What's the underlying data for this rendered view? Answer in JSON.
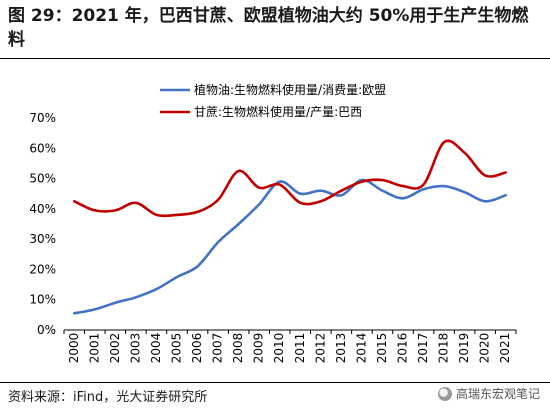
{
  "header": {
    "title": "图 29：2021 年，巴西甘蔗、欧盟植物油大约 50%用于生产生物燃料"
  },
  "footer": {
    "source": "资料来源：iFind，光大证券研究所",
    "watermark": "高瑞东宏观笔记"
  },
  "colors": {
    "eu": "#4472C4",
    "brazil": "#C00000"
  },
  "chart_data": {
    "type": "line",
    "title": "图 29：2021 年，巴西甘蔗、欧盟植物油大约 50%用于生产生物燃料",
    "xlabel": "",
    "ylabel": "",
    "ylim": [
      0,
      70
    ],
    "yticks": [
      "0%",
      "10%",
      "20%",
      "30%",
      "40%",
      "50%",
      "60%",
      "70%"
    ],
    "ytick_values": [
      0,
      10,
      20,
      30,
      40,
      50,
      60,
      70
    ],
    "x": [
      "2000",
      "2001",
      "2002",
      "2003",
      "2004",
      "2005",
      "2006",
      "2007",
      "2008",
      "2009",
      "2010",
      "2011",
      "2012",
      "2013",
      "2014",
      "2015",
      "2016",
      "2017",
      "2018",
      "2019",
      "2020",
      "2021"
    ],
    "grid": false,
    "legend": "top-center",
    "series": [
      {
        "name": "植物油:生物燃料使用量/消费量:欧盟",
        "color": "#4472C4",
        "values": [
          5.5,
          6.8,
          9.0,
          10.8,
          13.5,
          17.5,
          21.0,
          29.0,
          35.0,
          41.5,
          49.0,
          45.0,
          46.0,
          44.5,
          49.5,
          46.0,
          43.5,
          46.5,
          47.5,
          45.5,
          42.5,
          44.5
        ]
      },
      {
        "name": "甘蔗:生物燃料使用量/产量:巴西",
        "color": "#C00000",
        "values": [
          42.5,
          39.5,
          39.5,
          42.0,
          38.0,
          38.0,
          39.0,
          43.0,
          52.5,
          47.0,
          48.0,
          42.0,
          42.5,
          46.0,
          49.0,
          49.5,
          47.5,
          48.0,
          62.0,
          58.5,
          51.0,
          52.0
        ]
      }
    ]
  }
}
